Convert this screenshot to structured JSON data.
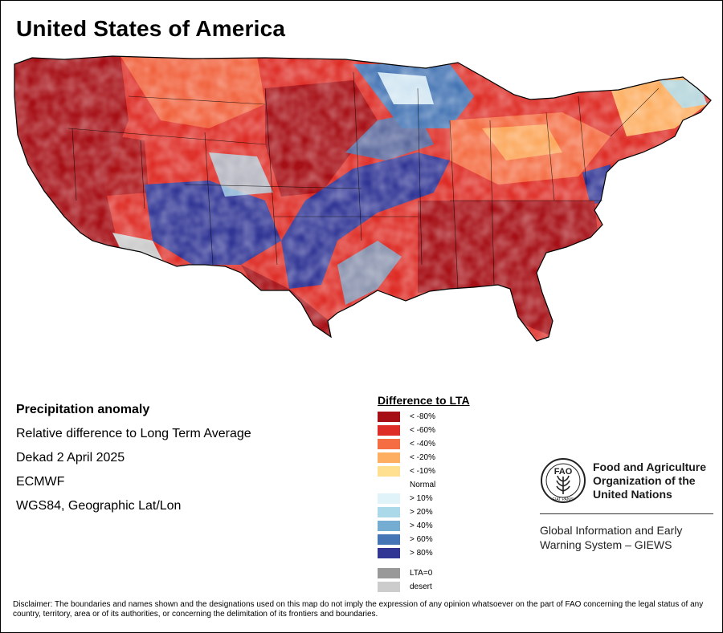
{
  "title": "United States of America",
  "info": {
    "heading": "Precipitation anomaly",
    "line1": "Relative difference to Long Term Average",
    "line2": "Dekad 2 April 2025",
    "line3": "ECMWF",
    "line4": "WGS84, Geographic Lat/Lon"
  },
  "legend": {
    "title": "Difference to LTA",
    "dry": [
      {
        "label": "< -80%",
        "color": "#a50f15"
      },
      {
        "label": "< -60%",
        "color": "#de2d26"
      },
      {
        "label": "< -40%",
        "color": "#f46d43"
      },
      {
        "label": "< -20%",
        "color": "#fdae61"
      },
      {
        "label": "< -10%",
        "color": "#fee090"
      }
    ],
    "normal": "Normal",
    "wet": [
      {
        "label": "> 10%",
        "color": "#e0f3f8"
      },
      {
        "label": "> 20%",
        "color": "#abd9e9"
      },
      {
        "label": "> 40%",
        "color": "#74add1"
      },
      {
        "label": "> 60%",
        "color": "#4575b4"
      },
      {
        "label": "> 80%",
        "color": "#313695"
      }
    ],
    "special": [
      {
        "label": "LTA=0",
        "color": "#999999"
      },
      {
        "label": "desert",
        "color": "#cccccc"
      }
    ]
  },
  "branding": {
    "org_name": "Food and Agriculture\nOrganization of the\nUnited Nations",
    "emblem_text": "FAO",
    "emblem_motto": "FIAT PANIS",
    "system_name": "Global Information and Early\nWarning System – GIEWS"
  },
  "disclaimer": "Disclaimer: The boundaries and names shown and the designations used on this map do not imply the expression of any opinion whatsoever on the part of FAO concerning the legal status of any country, territory, area or of its authorities, or concerning the delimitation of its frontiers and boundaries."
}
